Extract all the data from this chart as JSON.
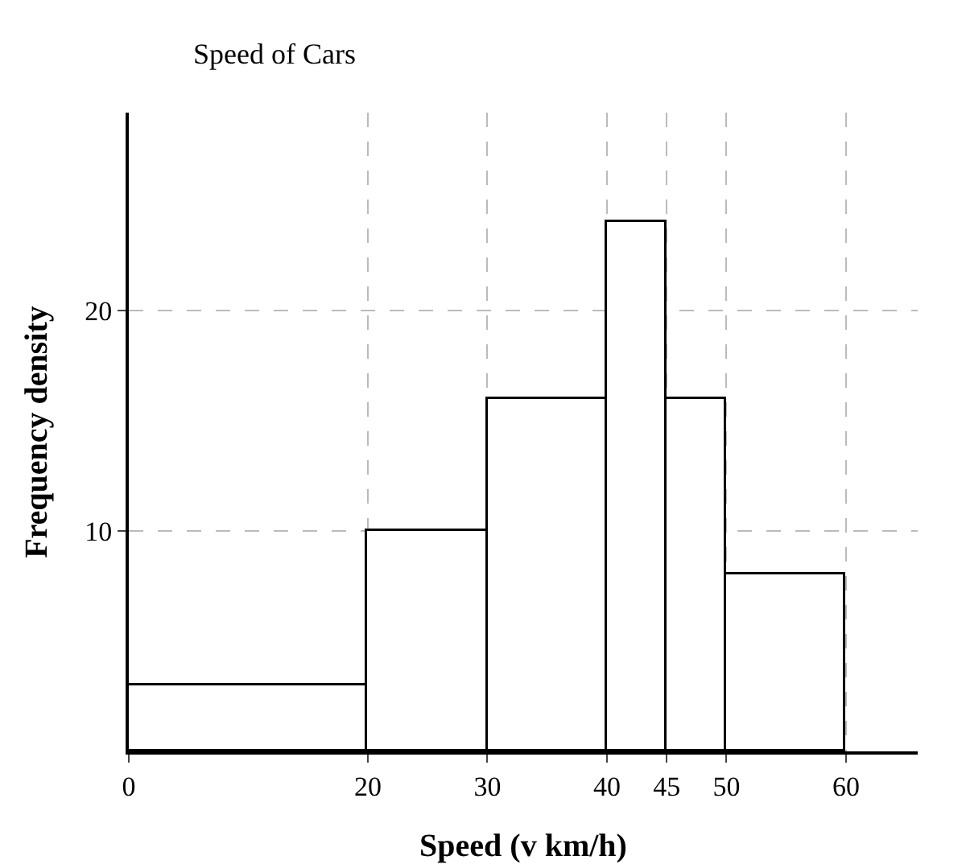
{
  "chart_data": {
    "type": "histogram",
    "title": "Speed of Cars",
    "xlabel": "Speed (v km/h)",
    "ylabel": "Frequency density",
    "bins": [
      0,
      20,
      30,
      40,
      45,
      50,
      60
    ],
    "values": [
      3,
      10,
      16,
      24,
      16,
      8
    ],
    "color": "#ffffff",
    "xlim": [
      0,
      66
    ],
    "xticks": [
      0,
      20,
      30,
      40,
      45,
      50,
      60
    ],
    "ylim": [
      0,
      29
    ],
    "yticks": [
      10,
      20
    ],
    "grid": true
  }
}
